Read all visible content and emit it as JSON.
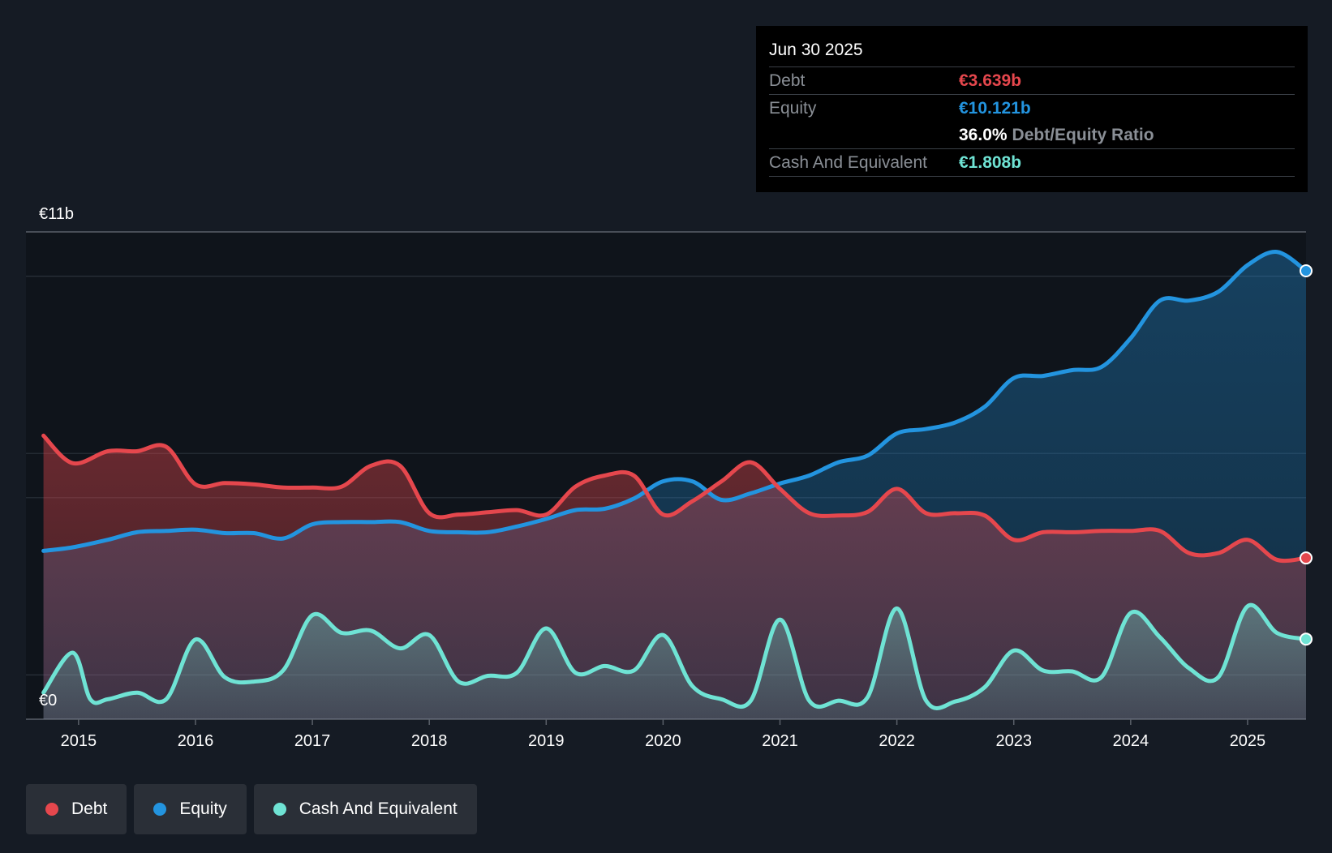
{
  "chart_data": {
    "type": "area",
    "title": "",
    "xlabel": "",
    "ylabel": "",
    "y_axis_labels": [
      "€11b",
      "€0"
    ],
    "ylim": [
      0,
      11
    ],
    "xlim": [
      2014.55,
      2025.5
    ],
    "x_ticks": [
      "2015",
      "2016",
      "2017",
      "2018",
      "2019",
      "2020",
      "2021",
      "2022",
      "2023",
      "2024",
      "2025"
    ],
    "x_tick_values": [
      2015,
      2016,
      2017,
      2018,
      2019,
      2020,
      2021,
      2022,
      2023,
      2024,
      2025
    ],
    "grid": true,
    "series": [
      {
        "name": "Debt",
        "color": "#e5474d",
        "x": [
          2014.7,
          2014.95,
          2015.25,
          2015.5,
          2015.75,
          2016.0,
          2016.25,
          2016.5,
          2016.75,
          2017.0,
          2017.25,
          2017.5,
          2017.75,
          2018.0,
          2018.25,
          2018.5,
          2018.75,
          2019.0,
          2019.25,
          2019.5,
          2019.75,
          2020.0,
          2020.25,
          2020.5,
          2020.75,
          2021.0,
          2021.25,
          2021.5,
          2021.75,
          2022.0,
          2022.25,
          2022.5,
          2022.75,
          2023.0,
          2023.25,
          2023.5,
          2023.75,
          2024.0,
          2024.25,
          2024.5,
          2024.75,
          2025.0,
          2025.25,
          2025.5
        ],
        "values": [
          6.4,
          5.78,
          6.05,
          6.05,
          6.15,
          5.3,
          5.33,
          5.3,
          5.23,
          5.23,
          5.25,
          5.72,
          5.72,
          4.65,
          4.62,
          4.67,
          4.72,
          4.62,
          5.25,
          5.5,
          5.5,
          4.62,
          4.92,
          5.37,
          5.8,
          5.2,
          4.65,
          4.6,
          4.68,
          5.2,
          4.65,
          4.65,
          4.6,
          4.05,
          4.22,
          4.22,
          4.25,
          4.25,
          4.25,
          3.75,
          3.75,
          4.05,
          3.6,
          3.639
        ]
      },
      {
        "name": "Equity",
        "color": "#2394df",
        "x": [
          2014.7,
          2014.95,
          2015.25,
          2015.5,
          2015.75,
          2016.0,
          2016.25,
          2016.5,
          2016.75,
          2017.0,
          2017.25,
          2017.5,
          2017.75,
          2018.0,
          2018.25,
          2018.5,
          2018.75,
          2019.0,
          2019.25,
          2019.5,
          2019.75,
          2020.0,
          2020.25,
          2020.5,
          2020.75,
          2021.0,
          2021.25,
          2021.5,
          2021.75,
          2022.0,
          2022.25,
          2022.5,
          2022.75,
          2023.0,
          2023.25,
          2023.5,
          2023.75,
          2024.0,
          2024.25,
          2024.5,
          2024.75,
          2025.0,
          2025.25,
          2025.5
        ],
        "values": [
          3.8,
          3.88,
          4.05,
          4.22,
          4.25,
          4.28,
          4.2,
          4.2,
          4.08,
          4.4,
          4.45,
          4.45,
          4.45,
          4.25,
          4.22,
          4.22,
          4.35,
          4.52,
          4.72,
          4.75,
          4.98,
          5.37,
          5.37,
          4.95,
          5.1,
          5.32,
          5.5,
          5.8,
          5.95,
          6.45,
          6.55,
          6.7,
          7.05,
          7.7,
          7.75,
          7.88,
          7.95,
          8.6,
          9.45,
          9.45,
          9.65,
          10.25,
          10.55,
          10.121
        ]
      },
      {
        "name": "Cash And Equivalent",
        "color": "#6fe3d4",
        "x": [
          2014.7,
          2014.95,
          2015.1,
          2015.25,
          2015.5,
          2015.75,
          2016.0,
          2016.25,
          2016.5,
          2016.75,
          2017.0,
          2017.25,
          2017.5,
          2017.75,
          2018.0,
          2018.25,
          2018.5,
          2018.75,
          2019.0,
          2019.25,
          2019.5,
          2019.75,
          2020.0,
          2020.25,
          2020.5,
          2020.75,
          2021.0,
          2021.25,
          2021.5,
          2021.75,
          2022.0,
          2022.25,
          2022.5,
          2022.75,
          2023.0,
          2023.25,
          2023.5,
          2023.75,
          2024.0,
          2024.25,
          2024.5,
          2024.75,
          2025.0,
          2025.25,
          2025.5
        ],
        "values": [
          0.6,
          1.5,
          0.45,
          0.45,
          0.6,
          0.45,
          1.8,
          0.95,
          0.85,
          1.1,
          2.35,
          1.95,
          2.0,
          1.6,
          1.9,
          0.85,
          0.98,
          1.05,
          2.05,
          1.05,
          1.2,
          1.1,
          1.9,
          0.75,
          0.45,
          0.42,
          2.25,
          0.42,
          0.42,
          0.5,
          2.5,
          0.42,
          0.4,
          0.72,
          1.55,
          1.1,
          1.08,
          0.95,
          2.4,
          1.85,
          1.15,
          0.95,
          2.55,
          1.95,
          1.808
        ]
      }
    ],
    "tooltip": {
      "date": "Jun 30 2025",
      "debt_label": "Debt",
      "debt_value": "€3.639b",
      "equity_label": "Equity",
      "equity_value": "€10.121b",
      "ratio_value": "36.0%",
      "ratio_label": "Debt/Equity Ratio",
      "cash_label": "Cash And Equivalent",
      "cash_value": "€1.808b"
    }
  },
  "legend": {
    "items": [
      {
        "label": "Debt",
        "color": "#e5474d"
      },
      {
        "label": "Equity",
        "color": "#2394df"
      },
      {
        "label": "Cash And Equivalent",
        "color": "#6fe3d4"
      }
    ]
  },
  "colors": {
    "background": "#151b24",
    "plot_background": "#0f141b",
    "tooltip_background": "#000000"
  }
}
